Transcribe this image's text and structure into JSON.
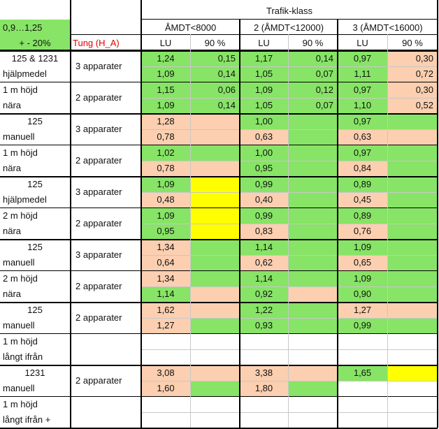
{
  "colors": {
    "green": "#87e466",
    "peach": "#fbcfb0",
    "yellow": "#ffff00",
    "white": "#ffffff",
    "red_text": "#e00000"
  },
  "header": {
    "tolerance_line1": "0,9…1,25",
    "tolerance_line2": "+ - 20%",
    "group_title": "Trafik-klass",
    "classes": [
      "ÅMDT<8000",
      "2 (ÅMDT<12000)",
      "3 (ÅMDT<16000)"
    ],
    "vehicle_label": "Tung (H_A)",
    "sub_lu": "LU",
    "sub_90": "90 %"
  },
  "sections": [
    {
      "label_rows": [
        "125 & 1231",
        "hjälpmedel",
        "1 m höjd",
        "nära"
      ],
      "groups": [
        {
          "app": "3 apparater",
          "rows": [
            [
              [
                "1,24",
                "green"
              ],
              [
                "0,15",
                "green"
              ],
              [
                "1,17",
                "green"
              ],
              [
                "0,14",
                "green"
              ],
              [
                "0,97",
                "green"
              ],
              [
                "0,30",
                "peach"
              ]
            ],
            [
              [
                "1,09",
                "green"
              ],
              [
                "0,14",
                "green"
              ],
              [
                "1,05",
                "green"
              ],
              [
                "0,07",
                "green"
              ],
              [
                "1,11",
                "green"
              ],
              [
                "0,72",
                "peach"
              ]
            ]
          ]
        },
        {
          "app": "2 apparater",
          "rows": [
            [
              [
                "1,15",
                "green"
              ],
              [
                "0,06",
                "green"
              ],
              [
                "1,09",
                "green"
              ],
              [
                "0,12",
                "green"
              ],
              [
                "0,97",
                "green"
              ],
              [
                "0,30",
                "peach"
              ]
            ],
            [
              [
                "1,09",
                "green"
              ],
              [
                "0,14",
                "green"
              ],
              [
                "1,05",
                "green"
              ],
              [
                "0,07",
                "green"
              ],
              [
                "1,10",
                "green"
              ],
              [
                "0,52",
                "peach"
              ]
            ]
          ]
        }
      ]
    },
    {
      "label_rows": [
        "125",
        "manuell",
        "1 m höjd",
        "nära"
      ],
      "groups": [
        {
          "app": "3 apparater",
          "rows": [
            [
              [
                "1,28",
                "peach"
              ],
              [
                "",
                "peach"
              ],
              [
                "1,00",
                "green"
              ],
              [
                "",
                "green"
              ],
              [
                "0,97",
                "green"
              ],
              [
                "",
                "green"
              ]
            ],
            [
              [
                "0,78",
                "peach"
              ],
              [
                "",
                "peach"
              ],
              [
                "0,63",
                "peach"
              ],
              [
                "",
                "green"
              ],
              [
                "0,63",
                "peach"
              ],
              [
                "",
                "peach"
              ]
            ]
          ]
        },
        {
          "app": "2 apparater",
          "rows": [
            [
              [
                "1,02",
                "green"
              ],
              [
                "",
                "green"
              ],
              [
                "1,00",
                "green"
              ],
              [
                "",
                "green"
              ],
              [
                "0,97",
                "green"
              ],
              [
                "",
                "green"
              ]
            ],
            [
              [
                "0,78",
                "peach"
              ],
              [
                "",
                "peach"
              ],
              [
                "0,95",
                "green"
              ],
              [
                "",
                "green"
              ],
              [
                "0,84",
                "peach"
              ],
              [
                "",
                "green"
              ]
            ]
          ]
        }
      ]
    },
    {
      "label_rows": [
        "125",
        "hjälpmedel",
        "2 m höjd",
        "nära"
      ],
      "groups": [
        {
          "app": "3 apparater",
          "rows": [
            [
              [
                "1,09",
                "green"
              ],
              [
                "",
                "yellow"
              ],
              [
                "0,99",
                "green"
              ],
              [
                "",
                "green"
              ],
              [
                "0,89",
                "green"
              ],
              [
                "",
                "green"
              ]
            ],
            [
              [
                "0,48",
                "peach"
              ],
              [
                "",
                "yellow"
              ],
              [
                "0,40",
                "peach"
              ],
              [
                "",
                "green"
              ],
              [
                "0,45",
                "peach"
              ],
              [
                "",
                "green"
              ]
            ]
          ]
        },
        {
          "app": "2 apparater",
          "rows": [
            [
              [
                "1,09",
                "green"
              ],
              [
                "",
                "yellow"
              ],
              [
                "0,99",
                "green"
              ],
              [
                "",
                "green"
              ],
              [
                "0,89",
                "green"
              ],
              [
                "",
                "green"
              ]
            ],
            [
              [
                "0,95",
                "green"
              ],
              [
                "",
                "yellow"
              ],
              [
                "0,83",
                "peach"
              ],
              [
                "",
                "green"
              ],
              [
                "0,76",
                "peach"
              ],
              [
                "",
                "green"
              ]
            ]
          ]
        }
      ]
    },
    {
      "label_rows": [
        "125",
        "manuell",
        "2 m höjd",
        "nära"
      ],
      "groups": [
        {
          "app": "3 apparater",
          "rows": [
            [
              [
                "1,34",
                "peach"
              ],
              [
                "",
                "green"
              ],
              [
                "1,14",
                "green"
              ],
              [
                "",
                "green"
              ],
              [
                "1,09",
                "green"
              ],
              [
                "",
                "green"
              ]
            ],
            [
              [
                "0,64",
                "peach"
              ],
              [
                "",
                "green"
              ],
              [
                "0,62",
                "peach"
              ],
              [
                "",
                "green"
              ],
              [
                "0,65",
                "peach"
              ],
              [
                "",
                "green"
              ]
            ]
          ]
        },
        {
          "app": "2 apparater",
          "rows": [
            [
              [
                "1,34",
                "peach"
              ],
              [
                "",
                "green"
              ],
              [
                "1,14",
                "green"
              ],
              [
                "",
                "green"
              ],
              [
                "1,09",
                "green"
              ],
              [
                "",
                "green"
              ]
            ],
            [
              [
                "1,14",
                "green"
              ],
              [
                "",
                "peach"
              ],
              [
                "0,92",
                "green"
              ],
              [
                "",
                "peach"
              ],
              [
                "0,90",
                "green"
              ],
              [
                "",
                "green"
              ]
            ]
          ]
        }
      ]
    },
    {
      "label_rows": [
        "125",
        "manuell",
        "1 m höjd",
        "långt ifrån"
      ],
      "groups": [
        {
          "app": "2 apparater",
          "rows": [
            [
              [
                "1,62",
                "peach"
              ],
              [
                "",
                "peach"
              ],
              [
                "1,22",
                "green"
              ],
              [
                "",
                "green"
              ],
              [
                "1,27",
                "peach"
              ],
              [
                "",
                "peach"
              ]
            ],
            [
              [
                "1,27",
                "peach"
              ],
              [
                "",
                "green"
              ],
              [
                "0,93",
                "green"
              ],
              [
                "",
                "green"
              ],
              [
                "0,99",
                "green"
              ],
              [
                "",
                "green"
              ]
            ]
          ]
        },
        {
          "app": "",
          "rows": [
            [
              [
                "",
                "white"
              ],
              [
                "",
                "white"
              ],
              [
                "",
                "white"
              ],
              [
                "",
                "white"
              ],
              [
                "",
                "white"
              ],
              [
                "",
                "white"
              ]
            ],
            [
              [
                "",
                "white"
              ],
              [
                "",
                "white"
              ],
              [
                "",
                "white"
              ],
              [
                "",
                "white"
              ],
              [
                "",
                "white"
              ],
              [
                "",
                "white"
              ]
            ]
          ]
        }
      ]
    },
    {
      "label_rows": [
        "1231",
        "manuell",
        "1 m höjd",
        "långt ifrån +"
      ],
      "groups": [
        {
          "app": "2 apparater",
          "rows": [
            [
              [
                "3,08",
                "peach"
              ],
              [
                "",
                "peach"
              ],
              [
                "3,38",
                "peach"
              ],
              [
                "",
                "peach"
              ],
              [
                "1,65",
                "green"
              ],
              [
                "",
                "yellow"
              ]
            ],
            [
              [
                "1,60",
                "peach"
              ],
              [
                "",
                "green"
              ],
              [
                "1,80",
                "peach"
              ],
              [
                "",
                "green"
              ],
              [
                "",
                "white"
              ],
              [
                "",
                "white"
              ]
            ]
          ]
        },
        {
          "app": "",
          "rows": [
            [
              [
                "",
                "white"
              ],
              [
                "",
                "white"
              ],
              [
                "",
                "white"
              ],
              [
                "",
                "white"
              ],
              [
                "",
                "white"
              ],
              [
                "",
                "white"
              ]
            ],
            [
              [
                "",
                "white"
              ],
              [
                "",
                "white"
              ],
              [
                "",
                "white"
              ],
              [
                "",
                "white"
              ],
              [
                "",
                "white"
              ],
              [
                "",
                "white"
              ]
            ]
          ]
        }
      ]
    }
  ]
}
